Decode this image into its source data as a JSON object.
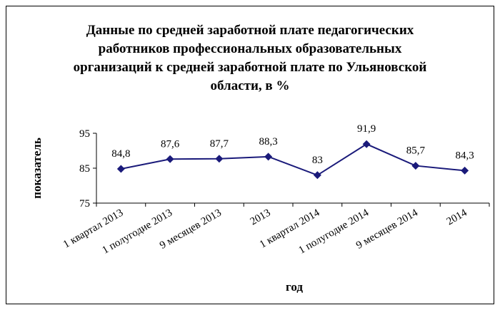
{
  "chart_data": {
    "type": "line",
    "title_lines": [
      "Данные по средней заработной плате педагогических",
      "работников профессиональных образовательных",
      "организаций к средней заработной плате по Ульяновской",
      "области, в %"
    ],
    "xlabel": "год",
    "ylabel": "показатель",
    "categories": [
      "1 квартал 2013",
      "1 полугодие 2013",
      "9 месяцев 2013",
      "2013",
      "1 квартал 2014",
      "1 полугодие 2014",
      "9 месяцев 2014",
      "2014"
    ],
    "series": [
      {
        "values": [
          84.8,
          87.6,
          87.7,
          88.3,
          83,
          91.9,
          85.7,
          84.3
        ]
      }
    ],
    "data_labels": [
      "84,8",
      "87,6",
      "87,7",
      "88,3",
      "83",
      "91,9",
      "85,7",
      "84,3"
    ],
    "ylim": [
      75,
      95
    ],
    "yticks": [
      75,
      85,
      95
    ],
    "legend": "none",
    "grid": false,
    "line_color": "#1a1a7a"
  }
}
